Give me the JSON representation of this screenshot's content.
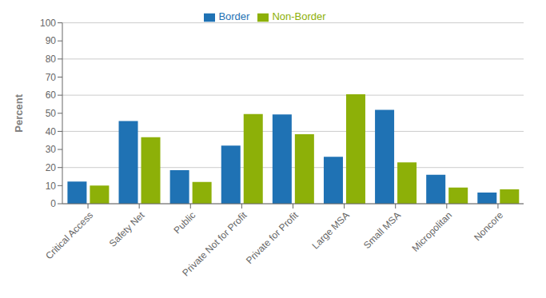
{
  "chart_data": {
    "type": "bar",
    "categories": [
      "Critical Access",
      "Safety Net",
      "Public",
      "Private Not for Profit",
      "Private for Profit",
      "Large MSA",
      "Small MSA",
      "Micropolitan",
      "Noncore"
    ],
    "series": [
      {
        "name": "Border",
        "color": "#1F72B4",
        "values": [
          12.3,
          45.7,
          18.5,
          32.1,
          49.4,
          25.9,
          51.9,
          16.0,
          6.2
        ]
      },
      {
        "name": "Non-Border",
        "color": "#8DB008",
        "values": [
          10.0,
          36.8,
          12.0,
          49.6,
          38.4,
          60.5,
          22.8,
          8.9,
          7.9
        ]
      }
    ],
    "ylabel": "Percent",
    "ylim": [
      0,
      100
    ],
    "yticks": [
      0,
      10,
      20,
      30,
      40,
      50,
      60,
      70,
      80,
      90,
      100
    ],
    "grid": true,
    "legend": "top"
  }
}
